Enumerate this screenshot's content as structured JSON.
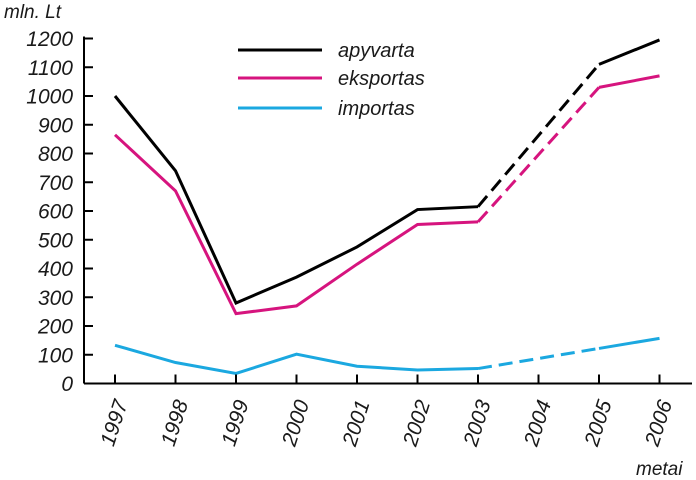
{
  "chart_data": {
    "type": "line",
    "ylabel": "mln. Lt",
    "xlabel": "metai",
    "categories": [
      "1997",
      "1998",
      "1999",
      "2000",
      "2001",
      "2002",
      "2003",
      "2004",
      "2005",
      "2006"
    ],
    "yticks": [
      0,
      100,
      200,
      300,
      400,
      500,
      600,
      700,
      800,
      900,
      1000,
      1100,
      1200
    ],
    "ylim": [
      0,
      1200
    ],
    "grid": false,
    "legend_position": "top-center",
    "solid_through_category": "2003",
    "dashed_after_category": "2003",
    "series": [
      {
        "name": "apyvarta",
        "color": "#000000",
        "values": [
          1000,
          740,
          280,
          370,
          475,
          605,
          615,
          null,
          1110,
          1195
        ]
      },
      {
        "name": "eksportas",
        "color": "#d6147e",
        "values": [
          865,
          670,
          243,
          270,
          415,
          553,
          562,
          null,
          1030,
          1070
        ]
      },
      {
        "name": "importas",
        "color": "#1ba8e0",
        "values": [
          133,
          73,
          35,
          102,
          60,
          47,
          52,
          null,
          122,
          157
        ]
      }
    ]
  }
}
